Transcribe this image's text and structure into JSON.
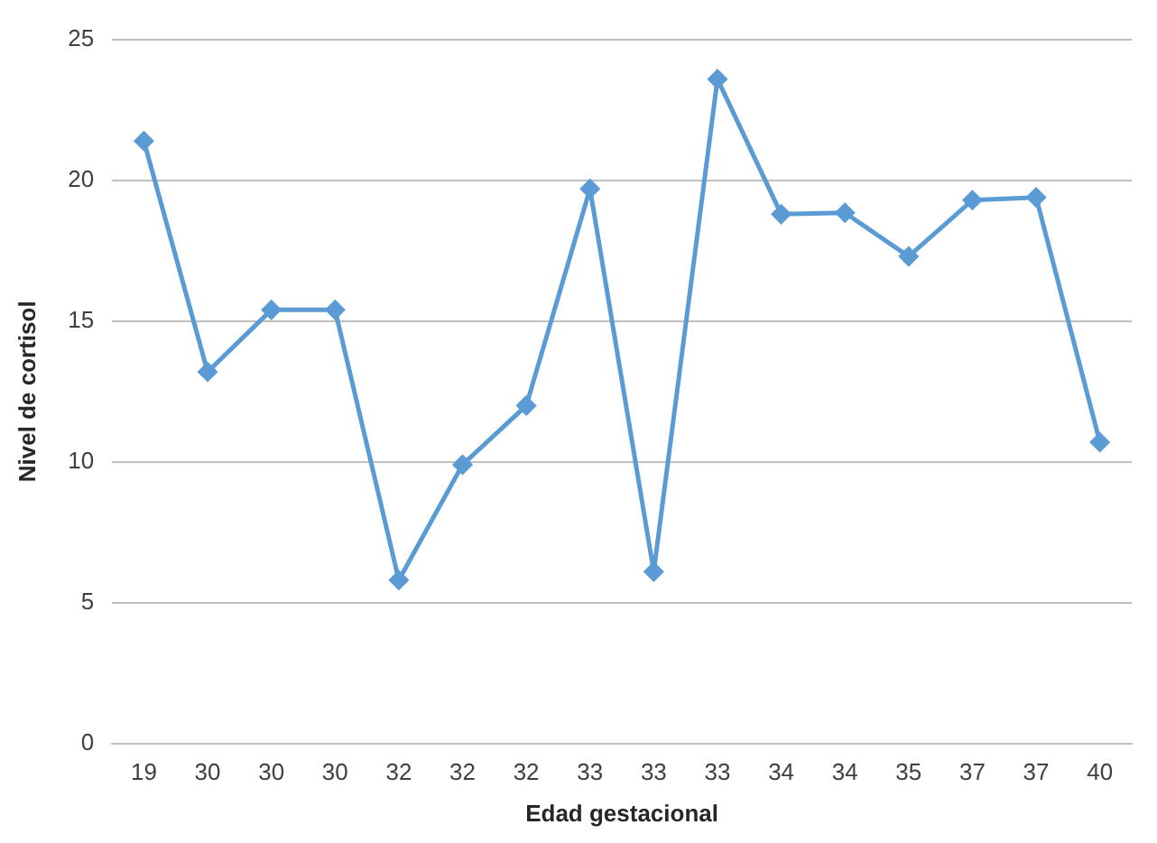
{
  "chart_data": {
    "type": "line",
    "xlabel": "Edad gestacional",
    "ylabel": "Nivel de cortisol",
    "categories": [
      "19",
      "30",
      "30",
      "30",
      "32",
      "32",
      "32",
      "33",
      "33",
      "33",
      "34",
      "34",
      "35",
      "37",
      "37",
      "40"
    ],
    "series": [
      {
        "color": "#5b9bd5",
        "values": [
          21.4,
          13.2,
          15.4,
          15.4,
          5.8,
          9.9,
          12.0,
          19.7,
          6.1,
          23.6,
          18.8,
          18.85,
          17.3,
          19.3,
          19.4,
          10.7
        ]
      }
    ],
    "ylim": [
      0,
      25
    ],
    "yticks": [
      0,
      5,
      10,
      15,
      20,
      25
    ],
    "grid": "y",
    "legend": false,
    "marker": "diamond",
    "line_style": "solid"
  }
}
